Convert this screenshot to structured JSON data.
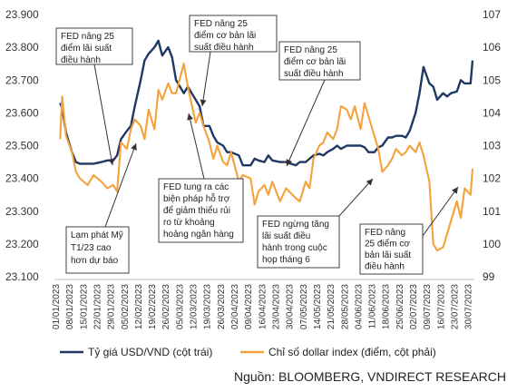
{
  "chart_data": {
    "type": "line",
    "title": "",
    "xlabel": "",
    "ylabel": "",
    "ylim_left": [
      23100,
      23900
    ],
    "ylim_right": [
      99,
      107
    ],
    "y_ticks_left": [
      "23.100",
      "23.200",
      "23.300",
      "23.400",
      "23.500",
      "23.600",
      "23.700",
      "23.800",
      "23.900"
    ],
    "y_ticks_right": [
      "99",
      "100",
      "101",
      "102",
      "103",
      "104",
      "105",
      "106",
      "107"
    ],
    "x_ticks": [
      "01/01/2023",
      "08/01/2023",
      "15/01/2023",
      "22/01/2023",
      "29/01/2023",
      "05/02/2023",
      "12/02/2023",
      "19/02/2023",
      "26/02/2023",
      "05/03/2023",
      "12/03/2023",
      "19/03/2023",
      "26/03/2023",
      "02/04/2023",
      "09/04/2023",
      "16/04/2023",
      "23/04/2023",
      "30/04/2023",
      "07/05/2023",
      "14/05/2023",
      "21/05/2023",
      "28/05/2023",
      "04/06/2023",
      "11/06/2023",
      "18/06/2023",
      "25/06/2023",
      "02/07/2023",
      "09/07/2023",
      "16/07/2023",
      "23/07/2023",
      "30/07/2023"
    ],
    "grid": false,
    "legend_position": "bottom",
    "series": [
      {
        "name": "Tỷ giá USD/VND (cột trái)",
        "axis": "left",
        "color": "#1f3864",
        "x": [
          "03/01/2023",
          "04/01/2023",
          "06/01/2023",
          "09/01/2023",
          "11/01/2023",
          "13/01/2023",
          "17/01/2023",
          "20/01/2023",
          "24/01/2023",
          "27/01/2023",
          "30/01/2023",
          "01/02/2023",
          "03/02/2023",
          "06/02/2023",
          "08/02/2023",
          "10/02/2023",
          "13/02/2023",
          "15/02/2023",
          "17/02/2023",
          "20/02/2023",
          "22/02/2023",
          "24/02/2023",
          "27/02/2023",
          "01/03/2023",
          "03/03/2023",
          "07/03/2023",
          "09/03/2023",
          "13/03/2023",
          "15/03/2023",
          "17/03/2023",
          "20/03/2023",
          "22/03/2023",
          "24/03/2023",
          "27/03/2023",
          "29/03/2023",
          "31/03/2023",
          "04/04/2023",
          "06/04/2023",
          "10/04/2023",
          "12/04/2023",
          "14/04/2023",
          "17/04/2023",
          "19/04/2023",
          "21/04/2023",
          "25/04/2023",
          "28/04/2023",
          "03/05/2023",
          "05/05/2023",
          "08/05/2023",
          "10/05/2023",
          "12/05/2023",
          "15/05/2023",
          "17/05/2023",
          "19/05/2023",
          "22/05/2023",
          "24/05/2023",
          "26/05/2023",
          "29/05/2023",
          "31/05/2023",
          "02/06/2023",
          "05/06/2023",
          "07/06/2023",
          "09/06/2023",
          "12/06/2023",
          "14/06/2023",
          "16/06/2023",
          "19/06/2023",
          "21/06/2023",
          "23/06/2023",
          "26/06/2023",
          "28/06/2023",
          "30/06/2023",
          "03/07/2023",
          "05/07/2023",
          "07/07/2023",
          "10/07/2023",
          "12/07/2023",
          "14/07/2023",
          "17/07/2023",
          "19/07/2023",
          "21/07/2023",
          "24/07/2023",
          "26/07/2023",
          "28/07/2023",
          "31/07/2023",
          "01/08/2023"
        ],
        "values": [
          23630,
          23615,
          23540,
          23480,
          23450,
          23445,
          23445,
          23445,
          23450,
          23455,
          23455,
          23470,
          23520,
          23545,
          23560,
          23620,
          23700,
          23760,
          23780,
          23800,
          23820,
          23775,
          23800,
          23770,
          23700,
          23660,
          23680,
          23640,
          23620,
          23560,
          23560,
          23530,
          23510,
          23500,
          23480,
          23480,
          23470,
          23440,
          23440,
          23460,
          23455,
          23450,
          23470,
          23455,
          23450,
          23450,
          23440,
          23450,
          23450,
          23460,
          23470,
          23475,
          23470,
          23480,
          23490,
          23500,
          23490,
          23500,
          23500,
          23500,
          23500,
          23495,
          23480,
          23480,
          23495,
          23500,
          23525,
          23525,
          23530,
          23530,
          23525,
          23545,
          23600,
          23660,
          23740,
          23690,
          23680,
          23640,
          23660,
          23650,
          23660,
          23665,
          23700,
          23690,
          23690,
          23760
        ]
      },
      {
        "name": "Chỉ số dollar index (điểm, cột phải)",
        "axis": "right",
        "color": "#f4a23c",
        "x": [
          "03/01/2023",
          "04/01/2023",
          "06/01/2023",
          "09/01/2023",
          "11/01/2023",
          "13/01/2023",
          "17/01/2023",
          "20/01/2023",
          "24/01/2023",
          "27/01/2023",
          "30/01/2023",
          "01/02/2023",
          "03/02/2023",
          "06/02/2023",
          "08/02/2023",
          "10/02/2023",
          "13/02/2023",
          "15/02/2023",
          "17/02/2023",
          "20/02/2023",
          "22/02/2023",
          "24/02/2023",
          "27/02/2023",
          "01/03/2023",
          "03/03/2023",
          "07/03/2023",
          "09/03/2023",
          "13/03/2023",
          "15/03/2023",
          "17/03/2023",
          "20/03/2023",
          "22/03/2023",
          "24/03/2023",
          "27/03/2023",
          "29/03/2023",
          "31/03/2023",
          "04/04/2023",
          "06/04/2023",
          "10/04/2023",
          "12/04/2023",
          "14/04/2023",
          "17/04/2023",
          "19/04/2023",
          "21/04/2023",
          "25/04/2023",
          "28/04/2023",
          "03/05/2023",
          "05/05/2023",
          "08/05/2023",
          "10/05/2023",
          "12/05/2023",
          "15/05/2023",
          "17/05/2023",
          "19/05/2023",
          "22/05/2023",
          "24/05/2023",
          "26/05/2023",
          "29/05/2023",
          "31/05/2023",
          "02/06/2023",
          "05/06/2023",
          "07/06/2023",
          "09/06/2023",
          "12/06/2023",
          "14/06/2023",
          "16/06/2023",
          "19/06/2023",
          "21/06/2023",
          "23/06/2023",
          "26/06/2023",
          "28/06/2023",
          "30/06/2023",
          "03/07/2023",
          "05/07/2023",
          "07/07/2023",
          "10/07/2023",
          "12/07/2023",
          "14/07/2023",
          "17/07/2023",
          "19/07/2023",
          "21/07/2023",
          "24/07/2023",
          "26/07/2023",
          "28/07/2023",
          "31/07/2023",
          "01/08/2023"
        ],
        "values": [
          103.2,
          104.5,
          103.3,
          102.8,
          102.2,
          102.0,
          101.8,
          102.1,
          101.9,
          101.7,
          101.8,
          101.6,
          103.1,
          102.9,
          103.5,
          103.8,
          103.6,
          103.2,
          104.1,
          103.5,
          104.7,
          104.4,
          104.9,
          104.6,
          104.6,
          105.5,
          104.8,
          103.7,
          104.0,
          103.6,
          103.1,
          102.6,
          103.0,
          102.5,
          102.4,
          102.8,
          101.9,
          102.1,
          102.0,
          101.2,
          101.6,
          101.8,
          101.5,
          101.9,
          101.3,
          101.7,
          101.4,
          101.3,
          101.9,
          101.7,
          102.6,
          103.0,
          103.1,
          103.4,
          103.2,
          103.5,
          104.2,
          104.1,
          103.8,
          104.2,
          103.5,
          104.3,
          103.9,
          103.3,
          102.9,
          102.2,
          102.4,
          102.6,
          102.9,
          102.7,
          102.8,
          103.0,
          102.8,
          103.1,
          102.7,
          101.9,
          100.0,
          99.8,
          99.9,
          100.3,
          100.7,
          101.3,
          100.8,
          101.7,
          101.5,
          102.3
        ]
      }
    ],
    "annotations": [
      {
        "id": "fed1",
        "lines": [
          "FED nâng 25",
          "điểm lãi suất",
          "điều hành"
        ]
      },
      {
        "id": "fed2",
        "lines": [
          "FED nâng 25",
          "điểm cơ bản lãi",
          "suất điều hành"
        ]
      },
      {
        "id": "fed3",
        "lines": [
          "FED nâng 25",
          "điểm cơ bản lãi",
          "suất điều hành"
        ]
      },
      {
        "id": "inflation",
        "lines": [
          "Lạm phát Mỹ",
          "T1/23 cao",
          "hơn dự báo"
        ]
      },
      {
        "id": "bank",
        "lines": [
          "FED tung ra các",
          "biện pháp hỗ trợ",
          "để giảm thiểu rủi",
          "ro từ khoảng",
          "hoảng ngân hàng"
        ]
      },
      {
        "id": "pause",
        "lines": [
          "FED ngừng tăng",
          "lãi suất điều",
          "hành trong cuộc",
          "họp tháng 6"
        ]
      },
      {
        "id": "fed4",
        "lines": [
          "FED nâng",
          "25 điểm cơ",
          "bản lãi suất",
          "điều hành"
        ]
      }
    ]
  },
  "source": "Nguồn: BLOOMBERG, VNDIRECT RESEARCH"
}
